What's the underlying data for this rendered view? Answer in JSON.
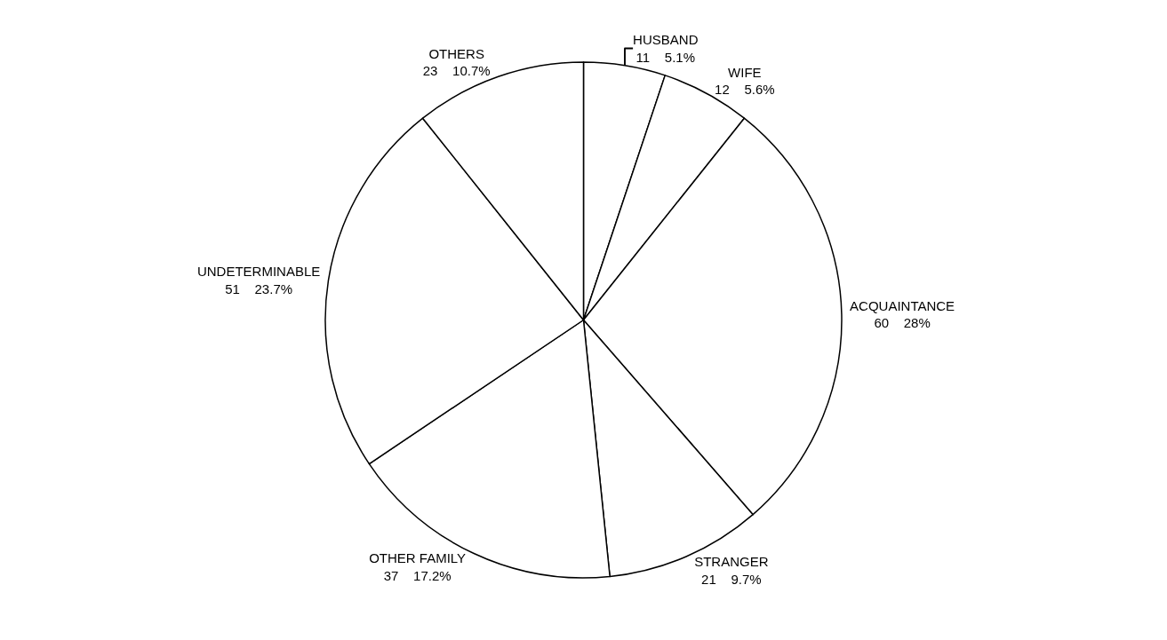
{
  "chart_data": {
    "type": "pie",
    "categories": [
      "HUSBAND",
      "WIFE",
      "ACQUAINTANCE",
      "STRANGER",
      "OTHER FAMILY",
      "UNDETERMINABLE",
      "OTHERS"
    ],
    "values": [
      11,
      12,
      60,
      21,
      37,
      51,
      23
    ],
    "value_labels": [
      "11    5.1%",
      "12    5.6%",
      "60    28%",
      "21    9.7%",
      "37    17.2%",
      "51    23.7%",
      "23    10.7%"
    ],
    "colors": [
      "#ffffff",
      "#ffffff",
      "#ffffff",
      "#ffffff",
      "#ffffff",
      "#ffffff",
      "#ffffff"
    ],
    "legend": false
  }
}
